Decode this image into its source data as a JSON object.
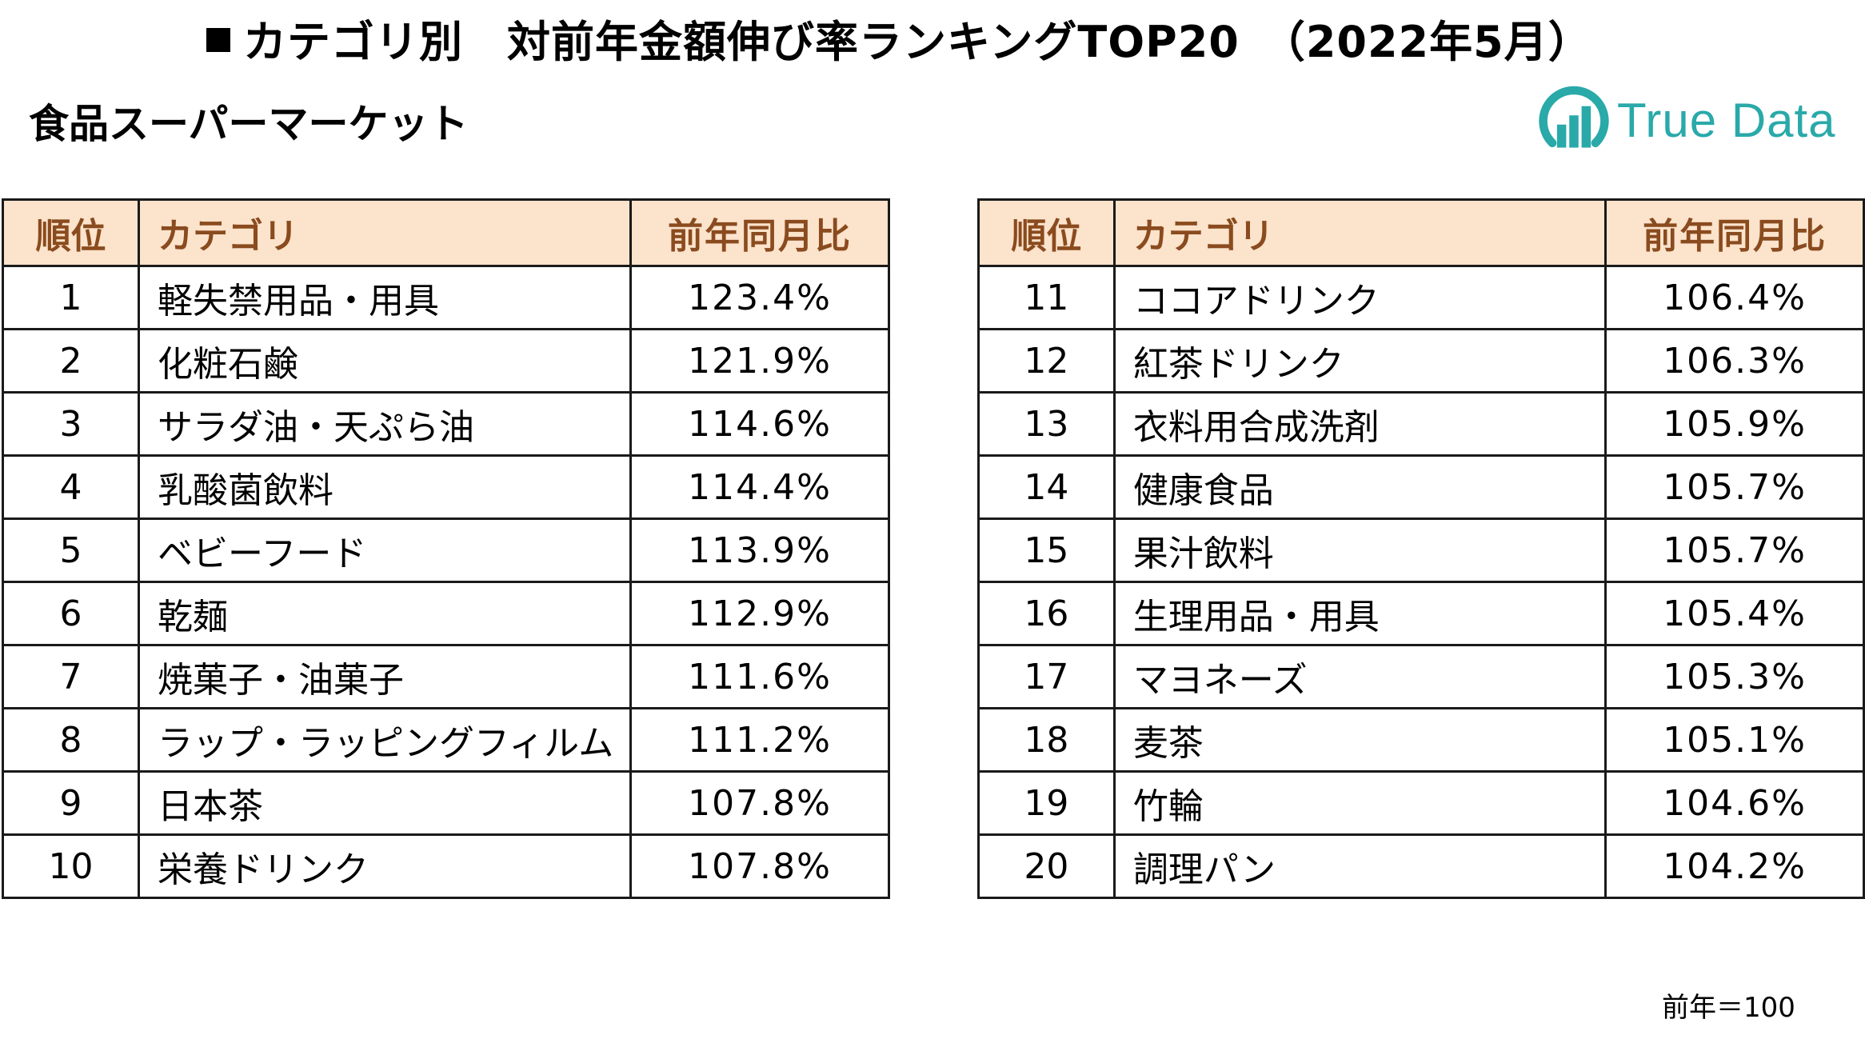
{
  "title": "カテゴリ別　対前年金額伸び率ランキングTOP20　（2022年5月）",
  "subtitle": "食品スーパーマーケット",
  "logo": {
    "text": "True Data",
    "color": "#2aa9a9"
  },
  "table_headers": {
    "rank": "順位",
    "category": "カテゴリ",
    "ratio": "前年同月比"
  },
  "colors": {
    "header_bg": "#fbe3cc",
    "header_text": "#8a4b1e"
  },
  "left_rows": [
    {
      "rank": "1",
      "category": "軽失禁用品・用具",
      "ratio": "123.4%"
    },
    {
      "rank": "2",
      "category": "化粧石鹸",
      "ratio": "121.9%"
    },
    {
      "rank": "3",
      "category": "サラダ油・天ぷら油",
      "ratio": "114.6%"
    },
    {
      "rank": "4",
      "category": "乳酸菌飲料",
      "ratio": "114.4%"
    },
    {
      "rank": "5",
      "category": "ベビーフード",
      "ratio": "113.9%"
    },
    {
      "rank": "6",
      "category": "乾麺",
      "ratio": "112.9%"
    },
    {
      "rank": "7",
      "category": "焼菓子・油菓子",
      "ratio": "111.6%"
    },
    {
      "rank": "8",
      "category": "ラップ・ラッピングフィルム",
      "ratio": "111.2%"
    },
    {
      "rank": "9",
      "category": "日本茶",
      "ratio": "107.8%"
    },
    {
      "rank": "10",
      "category": "栄養ドリンク",
      "ratio": "107.8%"
    }
  ],
  "right_rows": [
    {
      "rank": "11",
      "category": "ココアドリンク",
      "ratio": "106.4%"
    },
    {
      "rank": "12",
      "category": "紅茶ドリンク",
      "ratio": "106.3%"
    },
    {
      "rank": "13",
      "category": "衣料用合成洗剤",
      "ratio": "105.9%"
    },
    {
      "rank": "14",
      "category": "健康食品",
      "ratio": "105.7%"
    },
    {
      "rank": "15",
      "category": "果汁飲料",
      "ratio": "105.7%"
    },
    {
      "rank": "16",
      "category": "生理用品・用具",
      "ratio": "105.4%"
    },
    {
      "rank": "17",
      "category": "マヨネーズ",
      "ratio": "105.3%"
    },
    {
      "rank": "18",
      "category": "麦茶",
      "ratio": "105.1%"
    },
    {
      "rank": "19",
      "category": "竹輪",
      "ratio": "104.6%"
    },
    {
      "rank": "20",
      "category": "調理パン",
      "ratio": "104.2%"
    }
  ],
  "footnote": "前年＝100"
}
